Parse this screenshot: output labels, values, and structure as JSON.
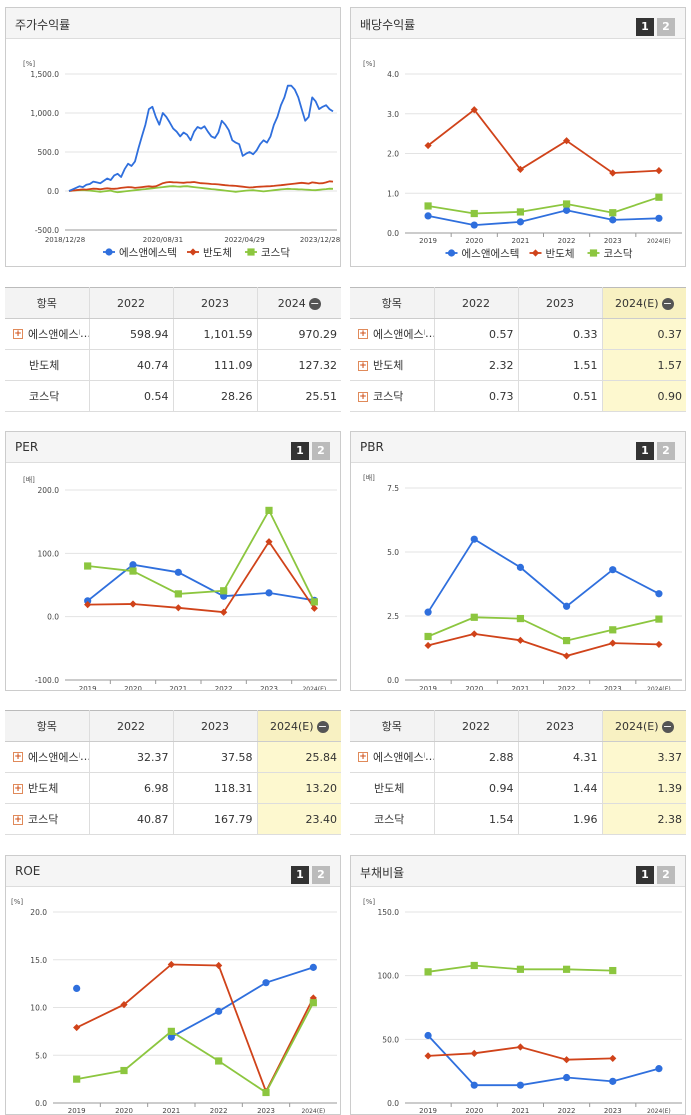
{
  "colors": {
    "s1": "#2f6fdd",
    "s2": "#d0431a",
    "s3": "#8cc63f"
  },
  "panels": [
    {
      "title": "주가수익률",
      "buttons": []
    },
    {
      "title": "배당수익률",
      "buttons": [
        "1",
        "2"
      ]
    },
    {
      "title": "PER",
      "buttons": [
        "1",
        "2"
      ]
    },
    {
      "title": "PBR",
      "buttons": [
        "1",
        "2"
      ]
    },
    {
      "title": "ROE",
      "buttons": [
        "1",
        "2"
      ]
    },
    {
      "title": "부채비율",
      "buttons": [
        "1",
        "2"
      ]
    }
  ],
  "chart_data": [
    {
      "type": "line",
      "unit": "[%]",
      "ylim": [
        -500,
        1500
      ],
      "yticks": [
        "-500.0",
        "0.0",
        "500.0",
        "1,000.0",
        "1,500.0"
      ],
      "xticks": [
        "2018/12/28",
        "2020/08/31",
        "2022/04/29",
        "2023/12/28"
      ],
      "legend": [
        "에스앤에스텍",
        "반도체",
        "코스닥"
      ],
      "series": [
        {
          "name": "에스앤에스텍",
          "values": [
            0,
            20,
            40,
            60,
            50,
            80,
            90,
            120,
            110,
            100,
            130,
            160,
            140,
            200,
            220,
            180,
            280,
            350,
            320,
            380,
            550,
            700,
            850,
            1050,
            1080,
            950,
            850,
            1000,
            950,
            880,
            800,
            760,
            700,
            750,
            720,
            650,
            760,
            820,
            800,
            830,
            760,
            700,
            680,
            750,
            900,
            850,
            780,
            650,
            620,
            600,
            450,
            480,
            500,
            470,
            520,
            600,
            650,
            620,
            700,
            850,
            950,
            1100,
            1200,
            1350,
            1350,
            1300,
            1200,
            1050,
            900,
            950,
            1200,
            1150,
            1050,
            1080,
            1100,
            1050,
            1020
          ]
        },
        {
          "name": "반도체",
          "values": [
            0,
            5,
            10,
            15,
            20,
            18,
            25,
            30,
            28,
            22,
            30,
            35,
            30,
            28,
            32,
            40,
            45,
            50,
            48,
            40,
            45,
            50,
            55,
            60,
            55,
            60,
            80,
            100,
            110,
            115,
            112,
            110,
            108,
            105,
            110,
            112,
            115,
            108,
            100,
            98,
            95,
            90,
            88,
            85,
            80,
            75,
            70,
            68,
            65,
            60,
            55,
            50,
            45,
            48,
            52,
            55,
            58,
            60,
            62,
            65,
            70,
            75,
            80,
            85,
            90,
            95,
            100,
            105,
            100,
            95,
            110,
            105,
            98,
            100,
            110,
            125,
            120
          ]
        },
        {
          "name": "코스닥",
          "values": [
            0,
            5,
            8,
            10,
            12,
            8,
            5,
            0,
            -5,
            -10,
            -5,
            0,
            5,
            -8,
            -15,
            -10,
            -5,
            0,
            5,
            10,
            15,
            20,
            25,
            30,
            35,
            40,
            45,
            50,
            55,
            60,
            62,
            58,
            55,
            60,
            62,
            55,
            50,
            45,
            40,
            35,
            30,
            25,
            20,
            15,
            10,
            5,
            0,
            -5,
            -10,
            -5,
            0,
            5,
            8,
            10,
            5,
            0,
            -5,
            0,
            5,
            10,
            15,
            20,
            25,
            28,
            26,
            24,
            22,
            20,
            18,
            15,
            12,
            10,
            15,
            20,
            25,
            30,
            28
          ]
        }
      ]
    },
    {
      "type": "line",
      "unit": "[%]",
      "ylim": [
        0,
        4
      ],
      "yticks": [
        "0.0",
        "1.0",
        "2.0",
        "3.0",
        "4.0"
      ],
      "categories": [
        "2019",
        "2020",
        "2021",
        "2022",
        "2023",
        "2024(E)"
      ],
      "legend": [
        "에스앤에스텍",
        "반도체",
        "코스닥"
      ],
      "series": [
        {
          "name": "에스앤에스텍",
          "values": [
            0.43,
            0.2,
            0.28,
            0.57,
            0.33,
            0.37
          ]
        },
        {
          "name": "반도체",
          "values": [
            2.2,
            3.1,
            1.6,
            2.32,
            1.51,
            1.57
          ]
        },
        {
          "name": "코스닥",
          "values": [
            0.68,
            0.49,
            0.53,
            0.73,
            0.51,
            0.9
          ]
        }
      ]
    },
    {
      "type": "line",
      "unit": "[배]",
      "ylim": [
        -100,
        200
      ],
      "yticks": [
        "-100.0",
        "0.0",
        "100.0",
        "200.0"
      ],
      "categories": [
        "2019",
        "2020",
        "2021",
        "2022",
        "2023",
        "2024(E)"
      ],
      "legend": [
        "에스앤에스텍",
        "반도체",
        "코스닥"
      ],
      "series": [
        {
          "name": "에스앤에스텍",
          "values": [
            25,
            82,
            70,
            32.37,
            37.58,
            25.84
          ]
        },
        {
          "name": "반도체",
          "values": [
            19,
            20,
            14,
            6.98,
            118.31,
            13.2
          ]
        },
        {
          "name": "코스닥",
          "values": [
            80,
            72,
            36,
            40.87,
            167.79,
            23.4
          ]
        }
      ]
    },
    {
      "type": "line",
      "unit": "[배]",
      "ylim": [
        0,
        7.5
      ],
      "yticks": [
        "0.0",
        "2.5",
        "5.0",
        "7.5"
      ],
      "categories": [
        "2019",
        "2020",
        "2021",
        "2022",
        "2023",
        "2024(E)"
      ],
      "legend": [
        "에스앤에스텍",
        "반도체",
        "코스닥"
      ],
      "series": [
        {
          "name": "에스앤에스텍",
          "values": [
            2.65,
            5.5,
            4.4,
            2.88,
            4.31,
            3.37
          ]
        },
        {
          "name": "반도체",
          "values": [
            1.35,
            1.8,
            1.55,
            0.94,
            1.44,
            1.39
          ]
        },
        {
          "name": "코스닥",
          "values": [
            1.7,
            2.45,
            2.4,
            1.54,
            1.96,
            2.38
          ]
        }
      ]
    },
    {
      "type": "line",
      "unit": "[%]",
      "ylim": [
        0,
        20
      ],
      "yticks": [
        "0.0",
        "5.0",
        "10.0",
        "15.0",
        "20.0"
      ],
      "categories": [
        "2019",
        "2020",
        "2021",
        "2022",
        "2023",
        "2024(E)"
      ],
      "legend": [
        "에스앤에스텍",
        "반도체",
        "코스닥"
      ],
      "series": [
        {
          "name": "에스앤에스텍",
          "values": [
            12,
            null,
            6.9,
            9.6,
            12.6,
            14.2
          ]
        },
        {
          "name": "반도체",
          "values": [
            7.9,
            10.3,
            14.5,
            14.4,
            1.2,
            11
          ]
        },
        {
          "name": "코스닥",
          "values": [
            2.5,
            3.4,
            7.5,
            4.4,
            1.1,
            10.5
          ]
        }
      ]
    },
    {
      "type": "line",
      "unit": "[%]",
      "ylim": [
        0,
        150
      ],
      "yticks": [
        "0.0",
        "50.0",
        "100.0",
        "150.0"
      ],
      "categories": [
        "2019",
        "2020",
        "2021",
        "2022",
        "2023",
        "2024(E)"
      ],
      "legend": [
        "에스앤에스텍",
        "반도체",
        "코스닥"
      ],
      "series": [
        {
          "name": "에스앤에스텍",
          "values": [
            53,
            14,
            14,
            20,
            17,
            27
          ]
        },
        {
          "name": "반도체",
          "values": [
            37,
            39,
            44,
            34,
            35,
            null
          ]
        },
        {
          "name": "코스닥",
          "values": [
            103,
            108,
            105,
            105,
            104,
            null
          ]
        }
      ]
    }
  ],
  "tables": [
    {
      "headers": [
        "항목",
        "2022",
        "2023",
        "2024"
      ],
      "hl": false,
      "rows": [
        {
          "label": "에스앤에스텍",
          "plus": true,
          "values": [
            "598.94",
            "1,101.59",
            "970.29"
          ]
        },
        {
          "label": "반도체",
          "plus": false,
          "values": [
            "40.74",
            "111.09",
            "127.32"
          ]
        },
        {
          "label": "코스닥",
          "plus": false,
          "values": [
            "0.54",
            "28.26",
            "25.51"
          ]
        }
      ]
    },
    {
      "headers": [
        "항목",
        "2022",
        "2023",
        "2024(E)"
      ],
      "hl": true,
      "rows": [
        {
          "label": "에스앤에스텍",
          "plus": true,
          "values": [
            "0.57",
            "0.33",
            "0.37"
          ]
        },
        {
          "label": "반도체",
          "plus": true,
          "values": [
            "2.32",
            "1.51",
            "1.57"
          ]
        },
        {
          "label": "코스닥",
          "plus": true,
          "values": [
            "0.73",
            "0.51",
            "0.90"
          ]
        }
      ]
    },
    {
      "headers": [
        "항목",
        "2022",
        "2023",
        "2024(E)"
      ],
      "hl": true,
      "rows": [
        {
          "label": "에스앤에스텍",
          "plus": true,
          "values": [
            "32.37",
            "37.58",
            "25.84"
          ]
        },
        {
          "label": "반도체",
          "plus": true,
          "values": [
            "6.98",
            "118.31",
            "13.20"
          ]
        },
        {
          "label": "코스닥",
          "plus": true,
          "values": [
            "40.87",
            "167.79",
            "23.40"
          ]
        }
      ]
    },
    {
      "headers": [
        "항목",
        "2022",
        "2023",
        "2024(E)"
      ],
      "hl": true,
      "rows": [
        {
          "label": "에스앤에스텍",
          "plus": true,
          "values": [
            "2.88",
            "4.31",
            "3.37"
          ]
        },
        {
          "label": "반도체",
          "plus": false,
          "values": [
            "0.94",
            "1.44",
            "1.39"
          ]
        },
        {
          "label": "코스닥",
          "plus": false,
          "values": [
            "1.54",
            "1.96",
            "2.38"
          ]
        }
      ]
    }
  ]
}
